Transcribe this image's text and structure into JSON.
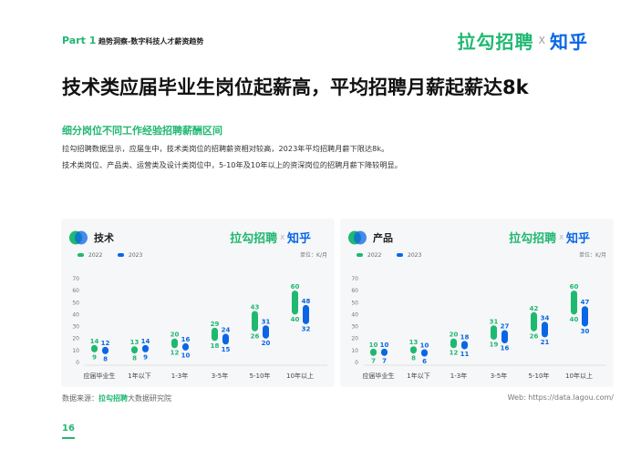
{
  "header": {
    "part": "Part 1",
    "section": "趋势洞察-数字科技人才薪资趋势",
    "brand_lagou": "拉勾招聘",
    "brand_x": "X",
    "brand_zhihu": "知乎"
  },
  "title": "技术类应届毕业生岗位起薪高，平均招聘月薪起薪达8k",
  "subtitle": "细分岗位不同工作经验招聘薪酬区间",
  "desc": [
    "拉勾招聘数据显示，应届生中，技术类岗位的招聘薪资相对较高，2023年平均招聘月薪下限达8k。",
    "技术类岗位、产品类、运营类及设计类岗位中，5-10年及10年以上的资深岗位的招聘月薪下降较明显。"
  ],
  "colors": {
    "green": "#1fb871",
    "blue": "#0a66e6"
  },
  "chart_data": [
    {
      "type": "bar",
      "title": "技术",
      "unit": "单位：K/月",
      "categories": [
        "应届毕业生",
        "1年以下",
        "1-3年",
        "3-5年",
        "5-10年",
        "10年以上"
      ],
      "ylim": [
        0,
        70
      ],
      "yticks": [
        0,
        10,
        20,
        30,
        40,
        50,
        60,
        70
      ],
      "series": [
        {
          "name": "2022",
          "low": [
            9,
            8,
            12,
            18,
            26,
            40
          ],
          "high": [
            14,
            13,
            20,
            29,
            43,
            60
          ]
        },
        {
          "name": "2023",
          "low": [
            8,
            9,
            10,
            15,
            20,
            32
          ],
          "high": [
            12,
            14,
            16,
            24,
            31,
            48
          ]
        }
      ]
    },
    {
      "type": "bar",
      "title": "产品",
      "unit": "单位：K/月",
      "categories": [
        "应届毕业生",
        "1年以下",
        "1-3年",
        "3-5年",
        "5-10年",
        "10年以上"
      ],
      "ylim": [
        0,
        70
      ],
      "yticks": [
        0,
        10,
        20,
        30,
        40,
        50,
        60,
        70
      ],
      "series": [
        {
          "name": "2022",
          "low": [
            7,
            8,
            12,
            19,
            26,
            40
          ],
          "high": [
            10,
            13,
            20,
            31,
            42,
            60
          ]
        },
        {
          "name": "2023",
          "low": [
            7,
            6,
            11,
            16,
            21,
            30
          ],
          "high": [
            10,
            10,
            18,
            27,
            34,
            47
          ]
        }
      ]
    }
  ],
  "footer": {
    "source_label": "数据来源：",
    "source_brand": "拉勾招聘",
    "source_rest": "大数据研究院",
    "web": "Web: https://data.lagou.com/"
  },
  "page_number": "16"
}
